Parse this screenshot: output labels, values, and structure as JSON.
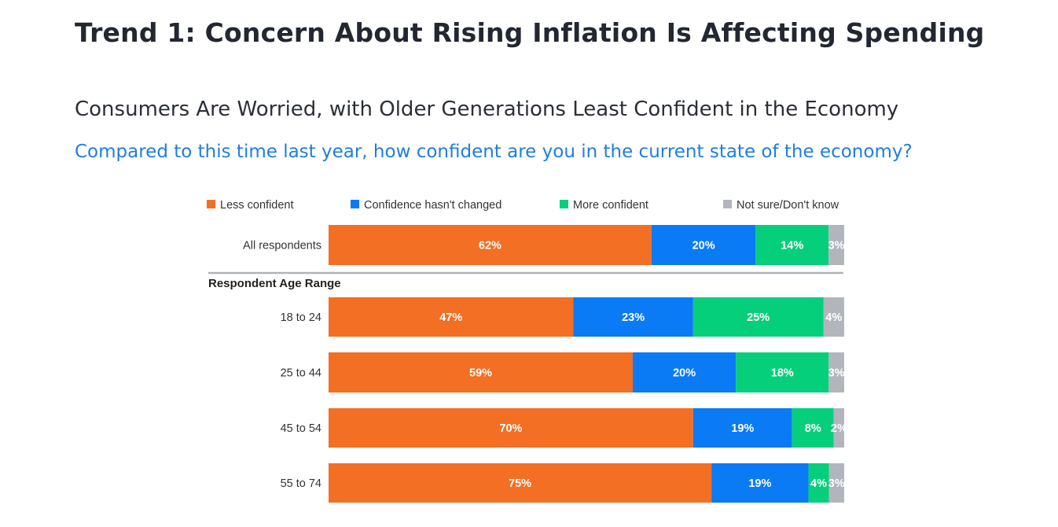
{
  "page": {
    "title": "Trend 1: Concern About Rising Inflation Is Affecting Spending",
    "subtitle": "Consumers Are Worried, with Older Generations Least Confident in the Economy",
    "question": "Compared to this time last year, how confident are you in the current state of the economy?"
  },
  "chart_data": {
    "type": "bar",
    "orientation": "horizontal",
    "stacked": true,
    "categories": [
      "All respondents",
      "18 to 24",
      "25 to 44",
      "45 to 54",
      "55 to 74"
    ],
    "section_label": "Respondent Age Range",
    "series": [
      {
        "name": "Less confident",
        "color": "#f26f24",
        "values": [
          62,
          47,
          59,
          70,
          75
        ]
      },
      {
        "name": "Confidence hasn't changed",
        "color": "#0b7af5",
        "values": [
          20,
          23,
          20,
          19,
          19
        ]
      },
      {
        "name": "More confident",
        "color": "#06cf7c",
        "values": [
          14,
          25,
          18,
          8,
          4
        ]
      },
      {
        "name": "Not sure/Don't know",
        "color": "#b2b6bc",
        "values": [
          3,
          4,
          3,
          2,
          3
        ]
      }
    ],
    "value_suffix": "%",
    "legend": "top",
    "grid": false
  }
}
